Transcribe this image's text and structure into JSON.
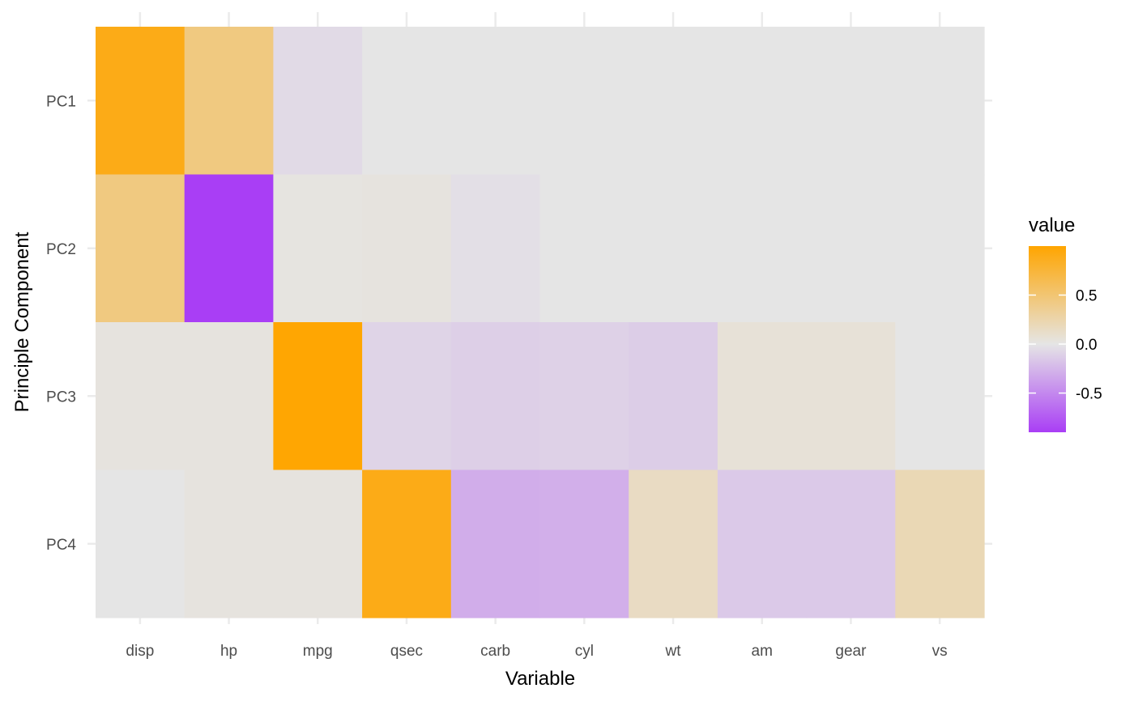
{
  "chart_data": {
    "type": "heatmap",
    "title": "",
    "xlabel": "Variable",
    "ylabel": "Principle Component",
    "x_categories": [
      "disp",
      "hp",
      "mpg",
      "qsec",
      "carb",
      "cyl",
      "wt",
      "am",
      "gear",
      "vs"
    ],
    "y_categories": [
      "PC1",
      "PC2",
      "PC3",
      "PC4"
    ],
    "values": [
      [
        0.9,
        0.44,
        -0.06,
        0.0,
        0.0,
        0.0,
        0.0,
        0.0,
        0.0,
        0.0
      ],
      [
        0.44,
        -0.9,
        0.02,
        0.03,
        -0.03,
        0.0,
        0.0,
        0.0,
        0.0,
        0.0
      ],
      [
        0.03,
        0.03,
        0.99,
        -0.09,
        -0.12,
        -0.11,
        -0.13,
        0.06,
        0.06,
        0.0
      ],
      [
        0.0,
        0.03,
        0.03,
        0.9,
        -0.3,
        -0.29,
        0.15,
        -0.15,
        -0.15,
        0.21
      ]
    ],
    "color_scale": {
      "low": "#a93ef5",
      "mid": "#e5e5e5",
      "high": "#ffa500",
      "min": -0.9,
      "mid_value": 0,
      "max": 1.0
    },
    "legend": {
      "title": "value",
      "ticks": [
        {
          "value": 0.5,
          "label": "0.5"
        },
        {
          "value": 0.0,
          "label": "0.0"
        },
        {
          "value": -0.5,
          "label": "-0.5"
        }
      ],
      "position": "right"
    },
    "grid": true,
    "grid_color": "#ebebeb"
  }
}
